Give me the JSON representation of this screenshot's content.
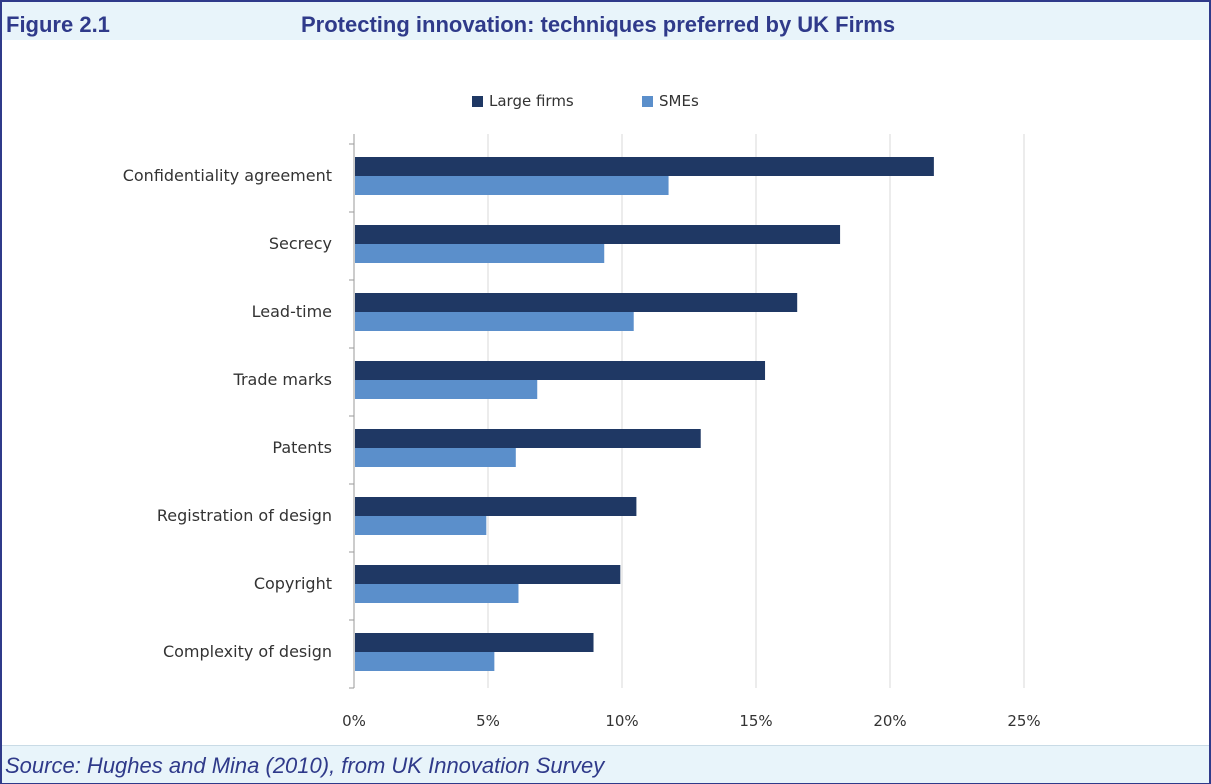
{
  "figure": {
    "number": "Figure 2.1",
    "title": "Protecting innovation: techniques preferred by UK Firms",
    "source": "Source: Hughes and Mina (2010), from UK Innovation Survey"
  },
  "colors": {
    "large_firms": "#1f3864",
    "smes": "#5b8fcb",
    "accent": "#2f3a8a"
  },
  "chart_data": {
    "type": "bar",
    "orientation": "horizontal",
    "categories": [
      "Confidentiality agreement",
      "Secrecy",
      "Lead-time",
      "Trade marks",
      "Patents",
      "Registration of design",
      "Copyright",
      "Complexity of design"
    ],
    "series": [
      {
        "name": "Large firms",
        "values": [
          21.6,
          18.1,
          16.5,
          15.3,
          12.9,
          10.5,
          9.9,
          8.9
        ]
      },
      {
        "name": "SMEs",
        "values": [
          11.7,
          9.3,
          10.4,
          6.8,
          6.0,
          4.9,
          6.1,
          5.2
        ]
      }
    ],
    "xlim": [
      0,
      25
    ],
    "xticks": [
      "0%",
      "5%",
      "10%",
      "15%",
      "20%",
      "25%"
    ],
    "grid": true,
    "legend_position": "top"
  }
}
